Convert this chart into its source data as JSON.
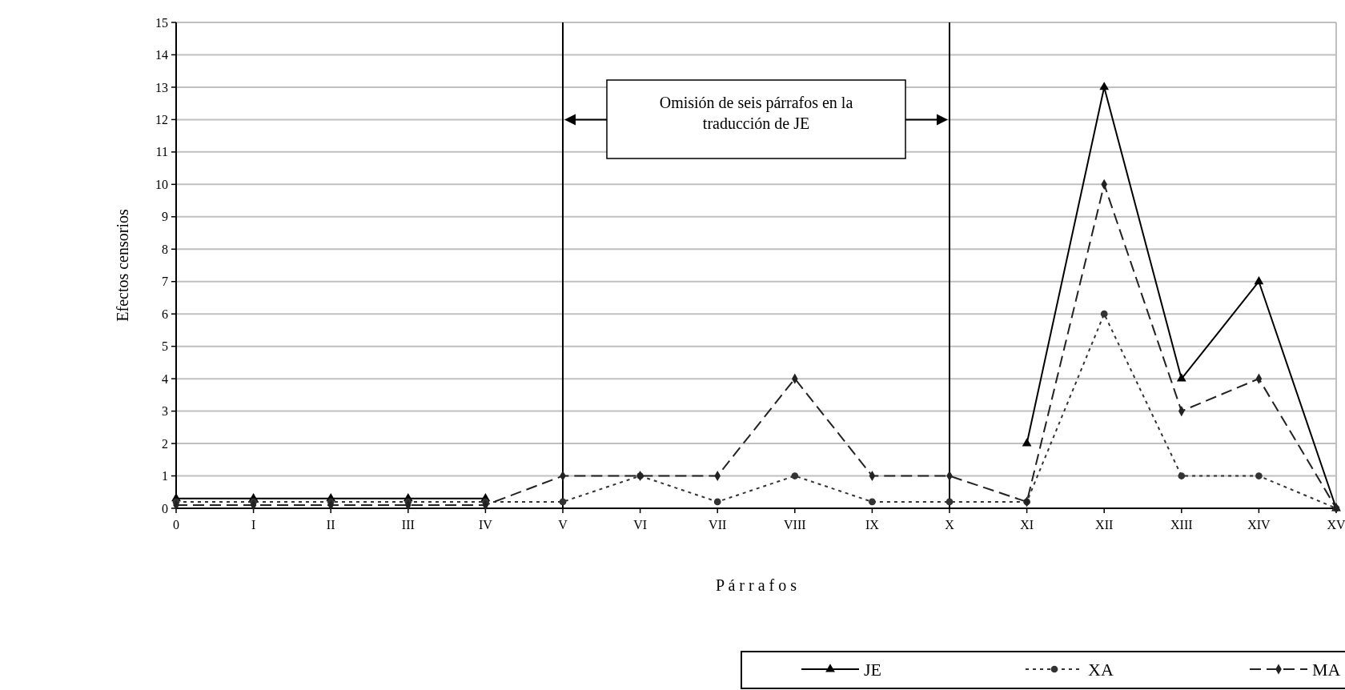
{
  "chart_data": {
    "type": "line",
    "xlabel": "P á r r a f o s",
    "ylabel": "Efectos censorios",
    "categories": [
      "0",
      "I",
      "II",
      "III",
      "IV",
      "V",
      "VI",
      "VII",
      "VIII",
      "IX",
      "X",
      "XI",
      "XII",
      "XIII",
      "XIV",
      "XV"
    ],
    "series": [
      {
        "name": "JE",
        "color": "#000000",
        "marker": "triangle",
        "line_style": "solid",
        "values": [
          0.3,
          0.3,
          0.3,
          0.3,
          0.3,
          null,
          null,
          null,
          null,
          null,
          null,
          2,
          13,
          4,
          7,
          0
        ]
      },
      {
        "name": "XA",
        "color": "#333333",
        "marker": "circle",
        "line_style": "dotted",
        "values": [
          0.2,
          0.2,
          0.2,
          0.2,
          0.2,
          0.2,
          1,
          0.2,
          1,
          0.2,
          0.2,
          0.2,
          6,
          1,
          1,
          0
        ]
      },
      {
        "name": "MA",
        "color": "#222222",
        "marker": "diamond",
        "line_style": "dashed",
        "values": [
          0.1,
          0.1,
          0.1,
          0.1,
          0.1,
          1,
          1,
          1,
          4,
          1,
          1,
          0.2,
          10,
          3,
          4,
          0
        ]
      }
    ],
    "ylim": [
      0,
      15
    ],
    "yticks": [
      0,
      1,
      2,
      3,
      4,
      5,
      6,
      7,
      8,
      9,
      10,
      11,
      12,
      13,
      14,
      15
    ],
    "grid": "y",
    "legend": "bottom right",
    "ref_lines": [
      {
        "axis": "x",
        "value": "V",
        "color": "#000000"
      },
      {
        "axis": "x",
        "value": "X",
        "color": "#000000"
      }
    ],
    "annotations": [
      "Omisión de seis párrafos en la traducción de JE"
    ]
  }
}
